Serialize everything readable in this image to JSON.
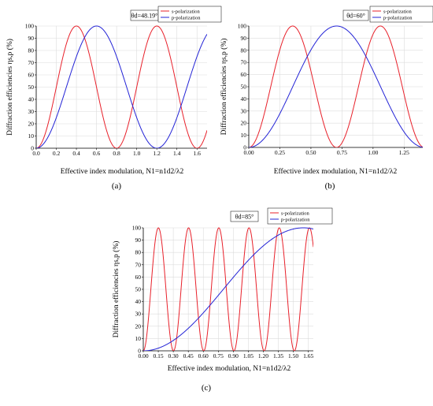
{
  "colors": {
    "s": "#e8202a",
    "p": "#2323d6",
    "grid": "#dcdcdc",
    "axis": "#000000"
  },
  "charts": [
    {
      "panel": "(a)",
      "theta_label": "θd=48.19°",
      "legend": [
        "s-polarization",
        "p-polarization"
      ],
      "xlabel": "Effective index modulation, N1=n1d2/λ2",
      "ylabel": "Diffraction efficiencies ηs,p (%)",
      "xticks": [
        "0.0",
        "0.2",
        "0.4",
        "0.6",
        "0.8",
        "1.0",
        "1.2",
        "1.4",
        "1.6"
      ],
      "yticks": [
        "0",
        "10",
        "20",
        "30",
        "40",
        "50",
        "60",
        "70",
        "80",
        "90",
        "100"
      ]
    },
    {
      "panel": "(b)",
      "theta_label": "θd=60°",
      "legend": [
        "s-polarization",
        "p-polarization"
      ],
      "xlabel": "Effective index modulation, N1=n1d2/λ2",
      "ylabel": "Diffraction efficiencies ηs,p (%)",
      "xticks": [
        "0.00",
        "0.25",
        "0.50",
        "0.75",
        "1.00",
        "1.25"
      ],
      "yticks": [
        "0",
        "10",
        "20",
        "30",
        "40",
        "50",
        "60",
        "70",
        "80",
        "90",
        "100"
      ]
    },
    {
      "panel": "(c)",
      "theta_label": "θd=85°",
      "legend": [
        "s-polarization",
        "p-polarization"
      ],
      "xlabel": "Effective index modulation, N1=n1d2/λ2",
      "ylabel": "Diffraction efficiencies ηs,p (%)",
      "xticks": [
        "0.00",
        "0.15",
        "0.30",
        "0.45",
        "0.60",
        "0.75",
        "0.90",
        "1.05",
        "1.20",
        "1.35",
        "1.50",
        "1.65"
      ],
      "yticks": [
        "0",
        "10",
        "20",
        "30",
        "40",
        "50",
        "60",
        "70",
        "80",
        "90",
        "100"
      ]
    }
  ],
  "chart_data": [
    {
      "type": "line",
      "xlim": [
        0,
        1.7
      ],
      "ylim": [
        0,
        100
      ],
      "grid": true,
      "legend_position": "top-right",
      "series": [
        {
          "name": "s-polarization",
          "color": "s",
          "model": "sin2",
          "x_max": 0.4,
          "x_end": 1.7
        },
        {
          "name": "p-polarization",
          "color": "p",
          "model": "sin2",
          "x_max": 0.6,
          "x_end": 1.7
        }
      ]
    },
    {
      "type": "line",
      "xlim": [
        0,
        1.4
      ],
      "ylim": [
        0,
        100
      ],
      "grid": true,
      "legend_position": "top-right",
      "series": [
        {
          "name": "s-polarization",
          "color": "s",
          "model": "sin2",
          "x_max": 0.353,
          "x_end": 1.414
        },
        {
          "name": "p-polarization",
          "color": "p",
          "model": "sin2",
          "x_max": 0.707,
          "x_end": 1.414
        }
      ]
    },
    {
      "type": "line",
      "xlim": [
        0,
        1.7
      ],
      "ylim": [
        0,
        100
      ],
      "grid": true,
      "legend_position": "top-center",
      "series": [
        {
          "name": "s-polarization",
          "color": "s",
          "model": "sin2",
          "x_max": 0.151,
          "x_end": 1.7
        },
        {
          "name": "p-polarization",
          "color": "p",
          "model": "sin2",
          "x_max": 1.6,
          "x_end": 1.7
        }
      ]
    }
  ]
}
